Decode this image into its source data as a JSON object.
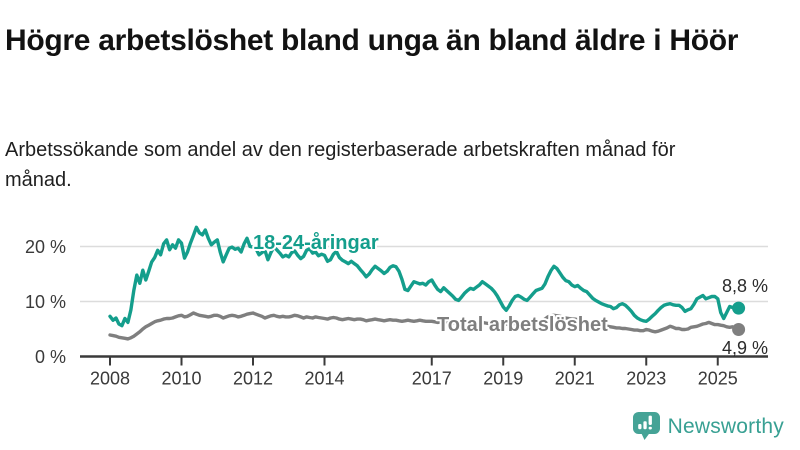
{
  "header": {
    "title": "Högre arbetslöshet bland unga än bland äldre i Höör",
    "subtitle": "Arbetssökande som andel av den registerbaserade arbetskraften månad för månad."
  },
  "chart_data": {
    "type": "line",
    "x_unit": "month",
    "x_start": "2008-01",
    "x_end": "2025-08",
    "xlim": [
      2008,
      2025.8
    ],
    "ylim": [
      0,
      25
    ],
    "grid": "horizontal",
    "legend_position": "inline-labels",
    "y_ticks": [
      0,
      10,
      20
    ],
    "y_tick_labels": [
      "0 %",
      "10 %",
      "20 %"
    ],
    "x_tick_labels": [
      "2008",
      "2010",
      "2012",
      "2014",
      "2017",
      "2019",
      "2021",
      "2023",
      "2025"
    ],
    "series": [
      {
        "name": "18-24-åringar",
        "color": "#149E8C",
        "end_label": "8,8 %",
        "end_value": 8.8,
        "values": [
          7.3,
          6.6,
          7.0,
          5.9,
          5.6,
          6.9,
          6.2,
          8.5,
          12.0,
          14.8,
          13.3,
          15.7,
          13.9,
          15.5,
          17.2,
          18.0,
          19.3,
          18.5,
          20.5,
          21.2,
          19.4,
          20.3,
          19.7,
          21.2,
          20.6,
          17.9,
          19.0,
          20.6,
          22.0,
          23.5,
          22.5,
          22.1,
          23.0,
          21.5,
          20.3,
          20.8,
          21.2,
          19.0,
          17.2,
          18.5,
          19.7,
          19.9,
          19.5,
          19.7,
          19.0,
          20.5,
          21.5,
          20.0,
          19.9,
          19.6,
          18.5,
          18.9,
          19.3,
          17.6,
          18.9,
          19.9,
          19.4,
          18.8,
          18.1,
          18.4,
          18.1,
          18.9,
          19.2,
          18.4,
          17.8,
          18.2,
          19.3,
          19.6,
          18.8,
          19.0,
          18.3,
          18.6,
          18.4,
          17.3,
          17.6,
          18.6,
          19.1,
          18.0,
          17.5,
          17.2,
          16.9,
          17.3,
          16.9,
          16.5,
          15.8,
          15.2,
          14.5,
          15.0,
          15.8,
          16.4,
          16.0,
          15.6,
          15.1,
          15.5,
          16.2,
          16.5,
          16.3,
          15.5,
          14.0,
          12.2,
          12.0,
          12.8,
          13.6,
          13.4,
          13.2,
          13.3,
          13.0,
          13.6,
          13.9,
          13.0,
          12.2,
          11.8,
          12.5,
          12.0,
          11.5,
          11.0,
          10.4,
          10.2,
          10.8,
          11.5,
          12.0,
          12.4,
          12.2,
          12.6,
          13.0,
          13.6,
          13.2,
          12.8,
          12.4,
          11.8,
          11.0,
          10.0,
          9.0,
          8.4,
          9.2,
          10.2,
          10.9,
          11.1,
          10.8,
          10.4,
          10.2,
          10.8,
          11.4,
          12.0,
          12.2,
          12.4,
          13.2,
          14.5,
          15.6,
          16.4,
          16.0,
          15.2,
          14.4,
          13.8,
          13.6,
          13.0,
          12.7,
          12.9,
          12.4,
          12.0,
          11.8,
          11.2,
          10.6,
          10.2,
          9.9,
          9.6,
          9.4,
          9.2,
          9.1,
          8.7,
          8.9,
          9.4,
          9.6,
          9.3,
          8.8,
          8.2,
          7.5,
          7.0,
          6.7,
          6.5,
          6.4,
          6.8,
          7.3,
          7.8,
          8.4,
          8.9,
          9.3,
          9.5,
          9.6,
          9.4,
          9.3,
          9.3,
          8.9,
          8.2,
          8.5,
          8.7,
          9.5,
          10.5,
          10.8,
          11.1,
          10.5,
          10.7,
          10.9,
          10.9,
          10.5,
          8.0,
          6.9,
          8.0,
          9.1,
          8.9,
          8.7,
          8.8
        ]
      },
      {
        "name": "Total arbetslöshet",
        "color": "#7F7F7F",
        "end_label": "4,9 %",
        "end_value": 4.9,
        "values": [
          3.9,
          3.8,
          3.7,
          3.5,
          3.4,
          3.3,
          3.2,
          3.4,
          3.7,
          4.1,
          4.5,
          5.0,
          5.4,
          5.7,
          6.0,
          6.3,
          6.5,
          6.6,
          6.8,
          6.9,
          6.9,
          7.0,
          7.2,
          7.4,
          7.5,
          7.2,
          7.3,
          7.6,
          7.9,
          7.7,
          7.5,
          7.4,
          7.3,
          7.2,
          7.3,
          7.5,
          7.5,
          7.3,
          7.0,
          7.2,
          7.4,
          7.5,
          7.4,
          7.2,
          7.3,
          7.5,
          7.7,
          7.8,
          7.9,
          7.7,
          7.5,
          7.3,
          7.0,
          7.2,
          7.4,
          7.5,
          7.3,
          7.2,
          7.3,
          7.2,
          7.2,
          7.3,
          7.5,
          7.4,
          7.2,
          7.0,
          7.2,
          7.1,
          7.0,
          7.2,
          7.1,
          7.0,
          6.9,
          6.8,
          7.0,
          7.1,
          7.0,
          6.8,
          6.7,
          6.8,
          6.9,
          6.8,
          6.7,
          6.8,
          6.8,
          6.7,
          6.5,
          6.6,
          6.7,
          6.8,
          6.7,
          6.6,
          6.5,
          6.6,
          6.7,
          6.6,
          6.6,
          6.5,
          6.4,
          6.5,
          6.6,
          6.5,
          6.4,
          6.5,
          6.6,
          6.5,
          6.4,
          6.4,
          6.4,
          6.3,
          6.2,
          6.3,
          6.4,
          6.3,
          6.2,
          6.1,
          6.2,
          6.3,
          6.2,
          6.3,
          6.3,
          6.2,
          6.1,
          6.0,
          6.1,
          6.2,
          6.1,
          6.0,
          5.9,
          6.0,
          6.1,
          6.0,
          6.0,
          5.9,
          5.8,
          5.9,
          6.0,
          6.1,
          6.0,
          5.9,
          6.0,
          6.1,
          6.2,
          6.3,
          6.4,
          6.5,
          6.8,
          7.2,
          7.4,
          7.5,
          7.4,
          7.3,
          7.2,
          7.0,
          6.9,
          6.8,
          6.8,
          6.7,
          6.6,
          6.4,
          6.3,
          6.1,
          6.0,
          5.9,
          5.8,
          5.7,
          5.6,
          5.5,
          5.4,
          5.3,
          5.2,
          5.2,
          5.1,
          5.1,
          5.0,
          4.9,
          4.8,
          4.8,
          4.7,
          4.7,
          4.9,
          4.8,
          4.6,
          4.5,
          4.6,
          4.8,
          5.0,
          5.2,
          5.5,
          5.3,
          5.1,
          5.1,
          4.9,
          4.9,
          5.0,
          5.3,
          5.4,
          5.5,
          5.7,
          5.9,
          6.0,
          6.2,
          6.0,
          5.8,
          5.8,
          5.7,
          5.6,
          5.4,
          5.3,
          5.4,
          5.2,
          4.9
        ]
      }
    ],
    "colors": {
      "youth_line": "#149E8C",
      "total_line": "#7F7F7F",
      "gridline": "#dcdcdc",
      "axis": "#3a3a3a"
    }
  },
  "branding": {
    "logo_text": "Newsworthy",
    "logo_color": "#38A093",
    "logo_icon": "bar-chart-speech-bubble"
  }
}
